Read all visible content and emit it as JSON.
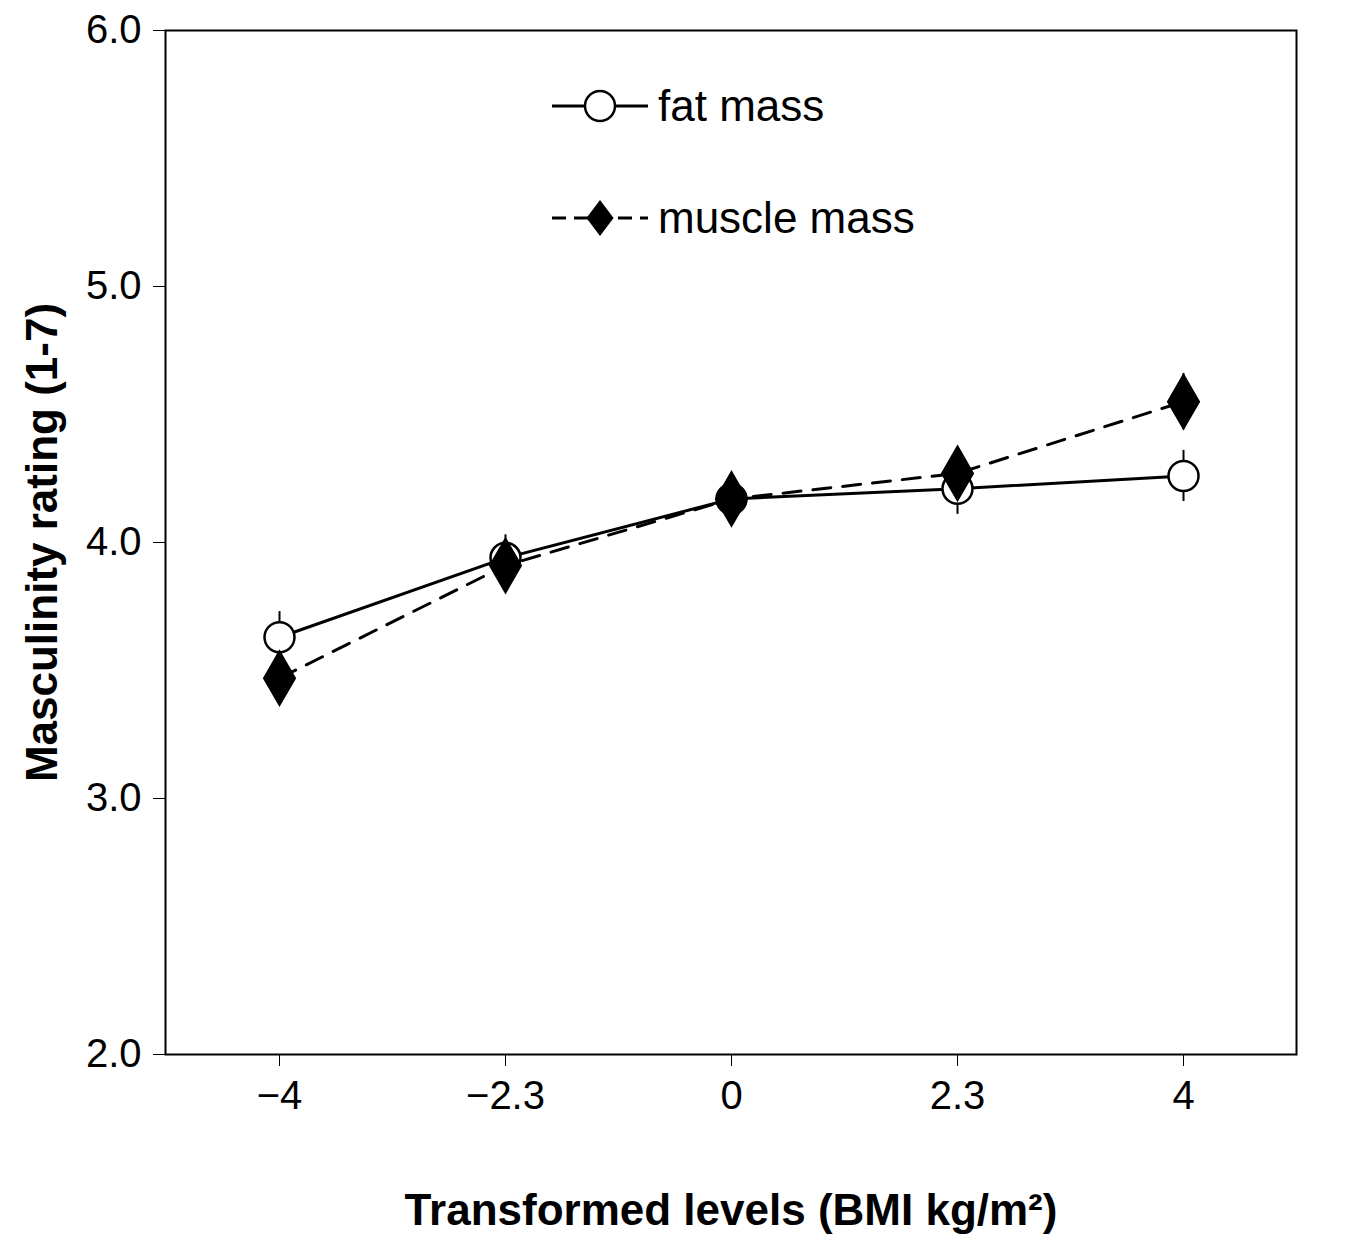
{
  "chart_data": {
    "type": "line",
    "x_label": "Transformed levels (BMI kg/m²)",
    "y_label": "Masculinity rating (1-7)",
    "categories": [
      "−4",
      "−2.3",
      "0",
      "2.3",
      "4"
    ],
    "series": [
      {
        "name": "fat mass",
        "color": "#000000",
        "marker": "circle",
        "line_style": "solid",
        "values": [
          3.63,
          3.94,
          4.17,
          4.21,
          4.26
        ],
        "errors": [
          0.1,
          0.09,
          0.09,
          0.1,
          0.1
        ]
      },
      {
        "name": "muscle mass",
        "color": "#000000",
        "marker": "diamond",
        "line_style": "dashed",
        "values": [
          3.47,
          3.91,
          4.17,
          4.27,
          4.55
        ],
        "errors": [
          0.09,
          0.09,
          0.09,
          0.1,
          0.11
        ]
      }
    ],
    "ylim": [
      2,
      6
    ],
    "yticks": [
      2,
      3,
      4,
      5,
      6
    ],
    "legend": "top",
    "grid": false
  }
}
